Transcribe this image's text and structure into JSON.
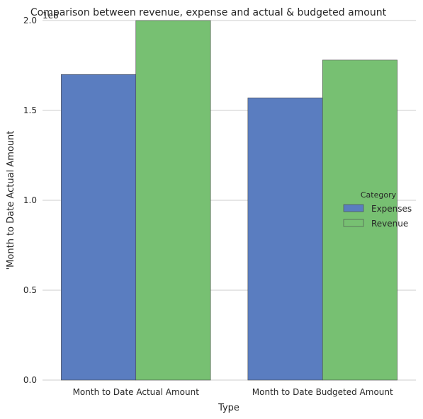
{
  "chart_data": {
    "type": "bar",
    "title": "Comparison between revenue, expense and actual & budgeted amount",
    "xlabel": "Type",
    "ylabel": "'Month to Date Actual Amount",
    "offset_label": "1e6",
    "categories": [
      "Month to Date Actual Amount",
      "Month to Date Budgeted Amount"
    ],
    "series": [
      {
        "name": "Expenses",
        "color": "#5a7dc0",
        "values": [
          1.7,
          1.57
        ]
      },
      {
        "name": "Revenue",
        "color": "#77c072",
        "values": [
          2.0,
          1.78
        ]
      }
    ],
    "ylim": [
      0,
      2.0
    ],
    "yticks": [
      "0.0",
      "0.5",
      "1.0",
      "1.5",
      "2.0"
    ],
    "grid": "horizontal",
    "legend": {
      "title": "Category",
      "placement": "right"
    }
  }
}
